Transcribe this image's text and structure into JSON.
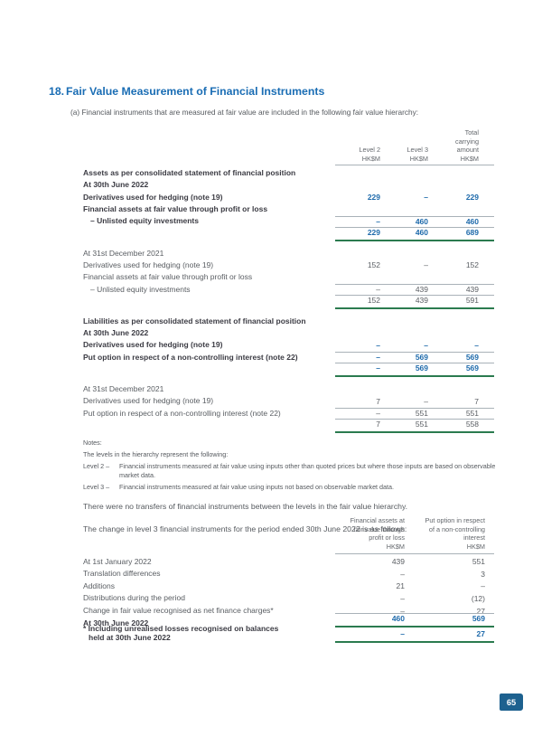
{
  "page": {
    "section_number": "18.",
    "title": "Fair Value Measurement of Financial Instruments",
    "intro": "(a) Financial instruments that are measured at fair value are included in the following fair value hierarchy:",
    "page_number": "65"
  },
  "colors": {
    "heading_blue": "#1a6db4",
    "value_blue": "#1e6aab",
    "text_dark": "#3b3b43",
    "text_gray": "#595d62",
    "rule_gray": "#a9b2b8",
    "rule_green": "#2b7b4f",
    "badge_blue": "#1d618f"
  },
  "table1": {
    "headers": {
      "col1": [
        "Level 2",
        "HK$M"
      ],
      "col2": [
        "Level 3",
        "HK$M"
      ],
      "col3": [
        "Total",
        "carrying",
        "amount",
        "HK$M"
      ]
    },
    "rows": [
      {
        "label": "Assets as per consolidated statement of financial position"
      },
      {
        "label": "At 30th June 2022"
      },
      {
        "label": "Derivatives used for hedging (note 19)",
        "v1": "229",
        "v2": "–",
        "v3": "229"
      },
      {
        "label": "Financial assets at fair value through profit or loss"
      },
      {
        "label": "– Unlisted equity investments",
        "v1": "–",
        "v2": "460",
        "v3": "460"
      },
      {
        "label": "",
        "v1": "229",
        "v2": "460",
        "v3": "689"
      },
      {
        "label": "At 31st December 2021"
      },
      {
        "label": "Derivatives used for hedging (note 19)",
        "v1": "152",
        "v2": "–",
        "v3": "152"
      },
      {
        "label": "Financial assets at fair value through profit or loss"
      },
      {
        "label": "– Unlisted equity investments",
        "v1": "–",
        "v2": "439",
        "v3": "439"
      },
      {
        "label": "",
        "v1": "152",
        "v2": "439",
        "v3": "591"
      },
      {
        "label": "Liabilities as per consolidated statement of financial position"
      },
      {
        "label": "At 30th June 2022"
      },
      {
        "label": "Derivatives used for hedging (note 19)",
        "v1": "–",
        "v2": "–",
        "v3": "–"
      },
      {
        "label": "Put option in respect of a non-controlling interest (note 22)",
        "v1": "–",
        "v2": "569",
        "v3": "569"
      },
      {
        "label": "",
        "v1": "–",
        "v2": "569",
        "v3": "569"
      },
      {
        "label": "At 31st December 2021"
      },
      {
        "label": "Derivatives used for hedging (note 19)",
        "v1": "7",
        "v2": "–",
        "v3": "7"
      },
      {
        "label": "Put option in respect of a non-controlling interest (note 22)",
        "v1": "–",
        "v2": "551",
        "v3": "551"
      },
      {
        "label": "",
        "v1": "7",
        "v2": "551",
        "v3": "558"
      }
    ]
  },
  "notes": {
    "title": "Notes:",
    "line1": "The levels in the hierarchy represent the following:",
    "level2_term": "Level 2 –",
    "level2_def": "Financial instruments measured at fair value using inputs other than quoted prices but where those inputs are based on observable market data.",
    "level3_term": "Level 3 –",
    "level3_def": "Financial instruments measured at fair value using inputs not based on observable market data."
  },
  "paragraphs": {
    "transfers": "There were no transfers of financial instruments between the levels in the fair value hierarchy.",
    "change": "The change in level 3 financial instruments for the period ended 30th June 2022 is as follows:"
  },
  "table2": {
    "headers": {
      "col1": [
        "Financial assets at",
        "fair value through",
        "profit or loss",
        "HK$M"
      ],
      "col2": [
        "Put option in respect",
        "of a non-controlling",
        "interest",
        "HK$M"
      ]
    },
    "rows": [
      {
        "label": "At 1st January 2022",
        "v1": "439",
        "v2": "551"
      },
      {
        "label": "Translation differences",
        "v1": "–",
        "v2": "3"
      },
      {
        "label": "Additions",
        "v1": "21",
        "v2": "–"
      },
      {
        "label": "Distributions during the period",
        "v1": "–",
        "v2": "(12)"
      },
      {
        "label": "Change in fair value recognised as net finance charges*",
        "v1": "–",
        "v2": "27"
      },
      {
        "label": "At 30th June 2022",
        "v1": "460",
        "v2": "569"
      },
      {
        "label_line1": "* Including unrealised losses recognised on balances",
        "label_line2": "held at 30th June 2022",
        "v1": "–",
        "v2": "27"
      }
    ]
  }
}
